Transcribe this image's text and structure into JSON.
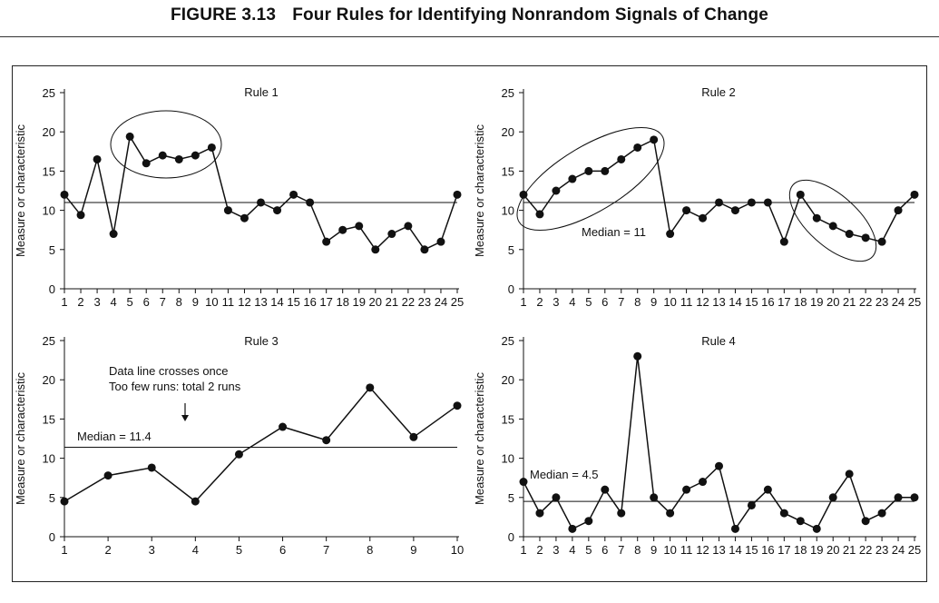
{
  "figure": {
    "number": "FIGURE 3.13",
    "title": "Four Rules for Identifying Nonrandom Signals of Change"
  },
  "chart_data": [
    {
      "type": "line",
      "title": "Rule 1",
      "ylabel": "Measure or characteristic",
      "xlabel": "",
      "ylim": [
        0,
        25
      ],
      "yticks": [
        0,
        5,
        10,
        15,
        20,
        25
      ],
      "x": [
        1,
        2,
        3,
        4,
        5,
        6,
        7,
        8,
        9,
        10,
        11,
        12,
        13,
        14,
        15,
        16,
        17,
        18,
        19,
        20,
        21,
        22,
        23,
        24,
        25
      ],
      "values": [
        12,
        9.4,
        16.5,
        7,
        19.4,
        16,
        17,
        16.5,
        17,
        18,
        10,
        9,
        11,
        10,
        12,
        11,
        6,
        7.5,
        8,
        5,
        7,
        8,
        5,
        6,
        12
      ],
      "median_line": 11,
      "median_label": "",
      "annotations": [],
      "highlights": [
        {
          "points": [
            5,
            10
          ]
        }
      ]
    },
    {
      "type": "line",
      "title": "Rule 2",
      "ylabel": "Measure or characteristic",
      "xlabel": "",
      "ylim": [
        0,
        25
      ],
      "yticks": [
        0,
        5,
        10,
        15,
        20,
        25
      ],
      "x": [
        1,
        2,
        3,
        4,
        5,
        6,
        7,
        8,
        9,
        10,
        11,
        12,
        13,
        14,
        15,
        16,
        17,
        18,
        19,
        20,
        21,
        22,
        23,
        24,
        25
      ],
      "values": [
        12,
        9.5,
        12.5,
        14,
        15,
        15,
        16.5,
        18,
        19,
        7,
        10,
        9,
        11,
        10,
        11,
        11,
        6,
        12,
        9,
        8,
        7,
        6.5,
        6,
        10,
        12
      ],
      "median_line": 11,
      "median_label": "Median = 11",
      "annotations": [],
      "highlights": [
        {
          "points": [
            1,
            9
          ]
        },
        {
          "points": [
            18,
            23
          ]
        }
      ]
    },
    {
      "type": "line",
      "title": "Rule 3",
      "ylabel": "Measure or characteristic",
      "xlabel": "",
      "ylim": [
        0,
        25
      ],
      "yticks": [
        0,
        5,
        10,
        15,
        20,
        25
      ],
      "x": [
        1,
        2,
        3,
        4,
        5,
        6,
        7,
        8,
        9,
        10
      ],
      "values": [
        4.5,
        7.8,
        8.8,
        4.5,
        10.5,
        14,
        12.3,
        19,
        12.7,
        16.7
      ],
      "median_line": 11.4,
      "median_label": "Median = 11.4",
      "annotations": [
        "Data line crosses once",
        "Too few runs: total 2 runs"
      ],
      "highlights": []
    },
    {
      "type": "line",
      "title": "Rule 4",
      "ylabel": "Measure or characteristic",
      "xlabel": "",
      "ylim": [
        0,
        25
      ],
      "yticks": [
        0,
        5,
        10,
        15,
        20,
        25
      ],
      "x": [
        1,
        2,
        3,
        4,
        5,
        6,
        7,
        8,
        9,
        10,
        11,
        12,
        13,
        14,
        15,
        16,
        17,
        18,
        19,
        20,
        21,
        22,
        23,
        24,
        25
      ],
      "values": [
        7,
        3,
        5,
        1,
        2,
        6,
        3,
        23,
        5,
        3,
        6,
        7,
        9,
        1,
        4,
        6,
        3,
        2,
        1,
        5,
        8,
        2,
        3,
        5,
        5
      ],
      "median_line": 4.5,
      "median_label": "Median = 4.5",
      "annotations": [],
      "highlights": []
    }
  ]
}
